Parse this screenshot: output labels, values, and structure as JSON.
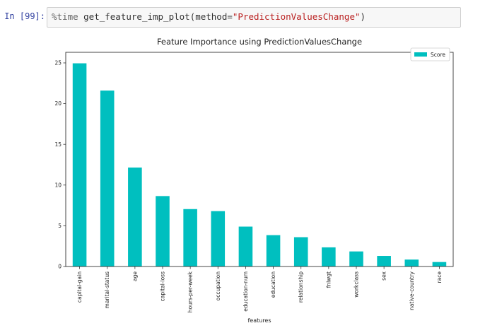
{
  "notebook": {
    "prompt": "In [99]:",
    "code": {
      "magic": "%time ",
      "call": "get_feature_imp_plot(method=",
      "string_arg": "\"PredictionValuesChange\"",
      "close": ")"
    }
  },
  "colors": {
    "bar": "#00bfbf",
    "axis": "#333333",
    "prompt": "#303f9f",
    "string": "#ba2121"
  },
  "chart_data": {
    "type": "bar",
    "title": "Feature Importance using PredictionValuesChange",
    "xlabel": "features",
    "ylabel": "",
    "categories": [
      "capital-gain",
      "marital-status",
      "age",
      "capital-loss",
      "hours-per-week",
      "occupation",
      "education-num",
      "education",
      "relationship",
      "fnlwgt",
      "workclass",
      "sex",
      "native-country",
      "race"
    ],
    "series": [
      {
        "name": "Score",
        "values": [
          24.95,
          21.6,
          12.15,
          8.65,
          7.05,
          6.8,
          4.9,
          3.85,
          3.6,
          2.35,
          1.85,
          1.3,
          0.85,
          0.55
        ]
      }
    ],
    "ylim": [
      0,
      26.3
    ],
    "yticks": [
      0,
      5,
      10,
      15,
      20,
      25
    ],
    "grid": false,
    "legend_position": "top-right"
  }
}
